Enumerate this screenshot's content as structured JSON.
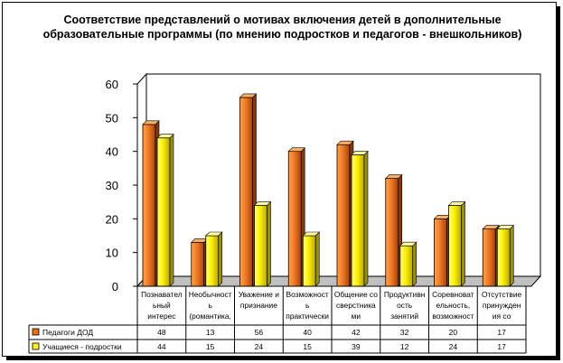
{
  "chart_data": {
    "type": "bar",
    "title": "Соответствие представлений о мотивах включения детей в дополнительные образовательные программы (по мнению подростков и педагогов - внешкольников)",
    "ylim": [
      0,
      60
    ],
    "yticks": [
      "0",
      "10",
      "20",
      "30",
      "40",
      "50",
      "60"
    ],
    "grid": "off",
    "legend": "table-left",
    "categories": [
      [
        "Познавател",
        "ьный",
        "интерес"
      ],
      [
        "Необычност",
        "ь",
        "(романтика,"
      ],
      [
        "Уважение и",
        "признание"
      ],
      [
        "Возможност",
        "ь",
        "практически"
      ],
      [
        "Общение со",
        "сверстника",
        "ми"
      ],
      [
        "Продуктивн",
        "ость",
        "занятий"
      ],
      [
        "Соревноват",
        "ельность,",
        "возможност"
      ],
      [
        "Отсутствие",
        "принужден",
        "ия со"
      ]
    ],
    "series": [
      {
        "name": "Педагоги ДОД",
        "values": [
          48,
          13,
          56,
          40,
          42,
          32,
          20,
          17
        ],
        "labels": [
          "48",
          "13",
          "56",
          "40",
          "42",
          "32",
          "20",
          "17"
        ],
        "color": "#e8701a"
      },
      {
        "name": "Учащиеся - подростки",
        "values": [
          44,
          15,
          24,
          15,
          39,
          12,
          24,
          17
        ],
        "labels": [
          "44",
          "15",
          "24",
          "15",
          "39",
          "12",
          "24",
          "17"
        ],
        "color": "#ffee22"
      }
    ]
  }
}
